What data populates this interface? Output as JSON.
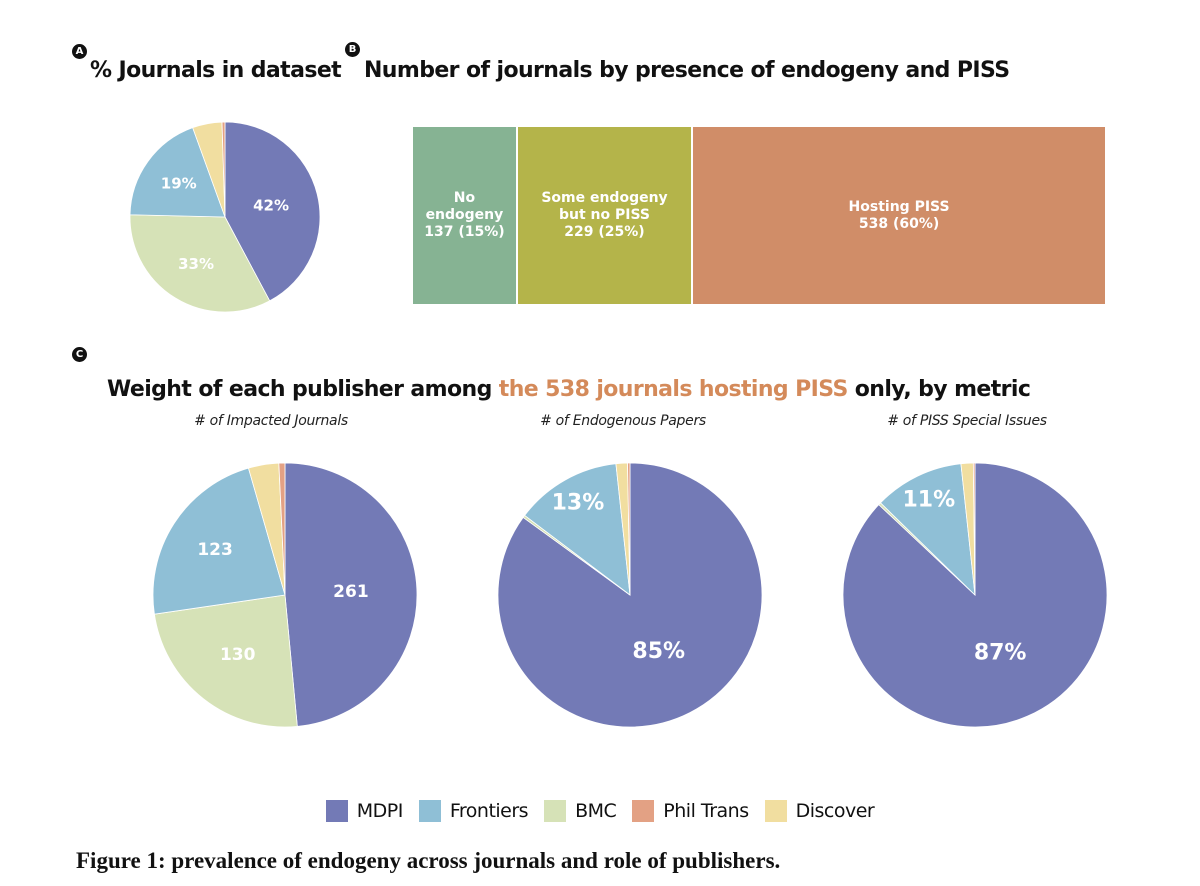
{
  "colors": {
    "mdpi": "#737ab6",
    "frontiers": "#8fbfd6",
    "bmc": "#d6e2b7",
    "phil_trans": "#e3a184",
    "discover": "#f1dea0",
    "no_endogeny": "#86b393",
    "some_endogeny": "#b4b44a",
    "hosting_piss": "#d08d68",
    "accent": "#d48a5a"
  },
  "panel_a": {
    "badge": "A",
    "title": "% Journals in dataset"
  },
  "panel_b": {
    "badge": "B",
    "title": "Number of journals by presence of endogeny and PISS"
  },
  "panel_c": {
    "badge": "C",
    "title_part1": "Weight of each publisher among ",
    "title_accent": "the 538 journals hosting PISS",
    "title_part2": " only, by metric",
    "subtitles": [
      "# of Impacted Journals",
      "# of Endogenous Papers",
      "# of PISS Special Issues"
    ]
  },
  "chart_data": [
    {
      "id": "dataset-share",
      "type": "pie",
      "title": "% Journals in dataset",
      "slices": [
        {
          "label": "MDPI",
          "value": 42,
          "display": "42%"
        },
        {
          "label": "BMC",
          "value": 33,
          "display": "33%"
        },
        {
          "label": "Frontiers",
          "value": 19,
          "display": "19%"
        },
        {
          "label": "Discover",
          "value": 5,
          "display": ""
        },
        {
          "label": "Phil Trans",
          "value": 0.5,
          "display": ""
        }
      ]
    },
    {
      "id": "endogeny-bar",
      "type": "bar",
      "orientation": "horizontal-stacked",
      "title": "Number of journals by presence of endogeny and PISS",
      "segments": [
        {
          "label_lines": [
            "No endogeny",
            "137 (15%)"
          ],
          "value": 137,
          "color_key": "no_endogeny"
        },
        {
          "label_lines": [
            "Some endogeny",
            "but no PISS",
            "229 (25%)"
          ],
          "value": 229,
          "color_key": "some_endogeny"
        },
        {
          "label_lines": [
            "Hosting PISS",
            "538 (60%)"
          ],
          "value": 538,
          "color_key": "hosting_piss"
        }
      ]
    },
    {
      "id": "impacted-journals",
      "type": "pie",
      "title": "# of Impacted Journals",
      "slices": [
        {
          "label": "MDPI",
          "value": 261,
          "display": "261"
        },
        {
          "label": "BMC",
          "value": 130,
          "display": "130"
        },
        {
          "label": "Frontiers",
          "value": 123,
          "display": "123"
        },
        {
          "label": "Discover",
          "value": 20,
          "display": ""
        },
        {
          "label": "Phil Trans",
          "value": 4,
          "display": ""
        }
      ]
    },
    {
      "id": "endogenous-papers",
      "type": "pie",
      "title": "# of Endogenous Papers",
      "slices": [
        {
          "label": "MDPI",
          "value": 85,
          "display": "85%"
        },
        {
          "label": "BMC",
          "value": 0.3,
          "display": ""
        },
        {
          "label": "Frontiers",
          "value": 13,
          "display": "13%"
        },
        {
          "label": "Discover",
          "value": 1.4,
          "display": ""
        },
        {
          "label": "Phil Trans",
          "value": 0.3,
          "display": ""
        }
      ]
    },
    {
      "id": "piss-special-issues",
      "type": "pie",
      "title": "# of PISS Special Issues",
      "slices": [
        {
          "label": "MDPI",
          "value": 87,
          "display": "87%"
        },
        {
          "label": "BMC",
          "value": 0.3,
          "display": ""
        },
        {
          "label": "Frontiers",
          "value": 11,
          "display": "11%"
        },
        {
          "label": "Discover",
          "value": 1.5,
          "display": ""
        },
        {
          "label": "Phil Trans",
          "value": 0.2,
          "display": ""
        }
      ]
    }
  ],
  "legend": [
    {
      "label": "MDPI",
      "color_key": "mdpi"
    },
    {
      "label": "Frontiers",
      "color_key": "frontiers"
    },
    {
      "label": "BMC",
      "color_key": "bmc"
    },
    {
      "label": "Phil Trans",
      "color_key": "phil_trans"
    },
    {
      "label": "Discover",
      "color_key": "discover"
    }
  ],
  "caption": "Figure 1: prevalence of endogeny across journals and role of publishers."
}
